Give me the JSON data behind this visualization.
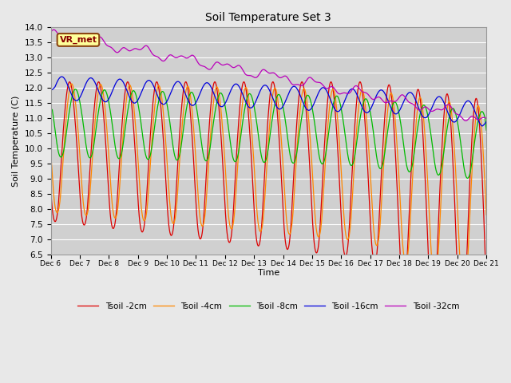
{
  "title": "Soil Temperature Set 3",
  "xlabel": "Time",
  "ylabel": "Soil Temperature (C)",
  "ylim": [
    6.5,
    14.0
  ],
  "yticks": [
    6.5,
    7.0,
    7.5,
    8.0,
    8.5,
    9.0,
    9.5,
    10.0,
    10.5,
    11.0,
    11.5,
    12.0,
    12.5,
    13.0,
    13.5,
    14.0
  ],
  "bg_color": "#e8e8e8",
  "plot_bg_color": "#d0d0d0",
  "grid_color": "#ffffff",
  "colors": {
    "2cm": "#dd0000",
    "4cm": "#ff8800",
    "8cm": "#00bb00",
    "16cm": "#0000dd",
    "32cm": "#bb00bb"
  },
  "legend_labels": [
    "Tsoil -2cm",
    "Tsoil -4cm",
    "Tsoil -8cm",
    "Tsoil -16cm",
    "Tsoil -32cm"
  ],
  "vr_met_label": "VR_met",
  "vr_met_bg": "#ffff99",
  "vr_met_border": "#8b4513",
  "vr_met_text_color": "#880000",
  "xtick_labels": [
    "Dec 6",
    "Dec 7",
    "Dec 8",
    "Dec 9",
    "Dec 10",
    "Dec 11",
    "Dec 12",
    "Dec 13",
    "Dec 14",
    "Dec 15",
    "Dec 16",
    "Dec 17",
    "Dec 18",
    "Dec 19",
    "Dec 20",
    "Dec 21"
  ],
  "num_points": 2000
}
